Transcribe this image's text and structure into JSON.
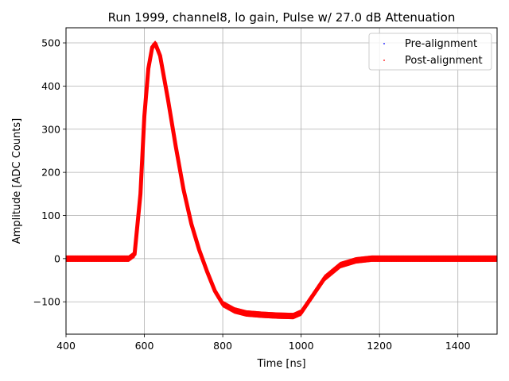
{
  "chart_data": {
    "type": "scatter",
    "title": "Run 1999, channel8, lo gain, Pulse w/ 27.0 dB Attenuation",
    "xlabel": "Time [ns]",
    "ylabel": "Amplitude [ADC Counts]",
    "xlim": [
      400,
      1500
    ],
    "ylim": [
      -175,
      535
    ],
    "xticks": [
      400,
      600,
      800,
      1000,
      1200,
      1400
    ],
    "xtick_labels": [
      "400",
      "600",
      "800",
      "1000",
      "1200",
      "1400"
    ],
    "yticks": [
      -100,
      0,
      100,
      200,
      300,
      400,
      500
    ],
    "ytick_labels": [
      "−100",
      "0",
      "100",
      "200",
      "300",
      "400",
      "500"
    ],
    "grid": true,
    "legend_position": "top-right",
    "series": [
      {
        "name": "Pre-alignment",
        "color": "#0000ff",
        "marker": "point",
        "x": [
          400,
          560,
          575,
          590,
          600,
          610,
          620,
          628,
          640,
          660,
          680,
          700,
          720,
          740,
          760,
          780,
          800,
          830,
          860,
          900,
          940,
          980,
          1000,
          1030,
          1060,
          1100,
          1140,
          1180,
          1250,
          1350,
          1450,
          1500
        ],
        "y": [
          0,
          0,
          10,
          150,
          330,
          440,
          490,
          498,
          470,
          370,
          260,
          160,
          80,
          20,
          -30,
          -75,
          -105,
          -120,
          -127,
          -130,
          -132,
          -133,
          -125,
          -85,
          -45,
          -15,
          -4,
          0,
          0,
          0,
          0,
          0
        ]
      },
      {
        "name": "Post-alignment",
        "color": "#ff0000",
        "marker": "point",
        "x": [
          400,
          560,
          575,
          590,
          600,
          610,
          620,
          628,
          640,
          660,
          680,
          700,
          720,
          740,
          760,
          780,
          800,
          830,
          860,
          900,
          940,
          980,
          1000,
          1030,
          1060,
          1100,
          1140,
          1180,
          1250,
          1350,
          1450,
          1500
        ],
        "y": [
          0,
          0,
          10,
          150,
          330,
          440,
          490,
          498,
          470,
          370,
          260,
          160,
          80,
          20,
          -30,
          -75,
          -105,
          -120,
          -127,
          -130,
          -132,
          -133,
          -125,
          -85,
          -45,
          -15,
          -4,
          0,
          0,
          0,
          0,
          0
        ]
      }
    ]
  }
}
